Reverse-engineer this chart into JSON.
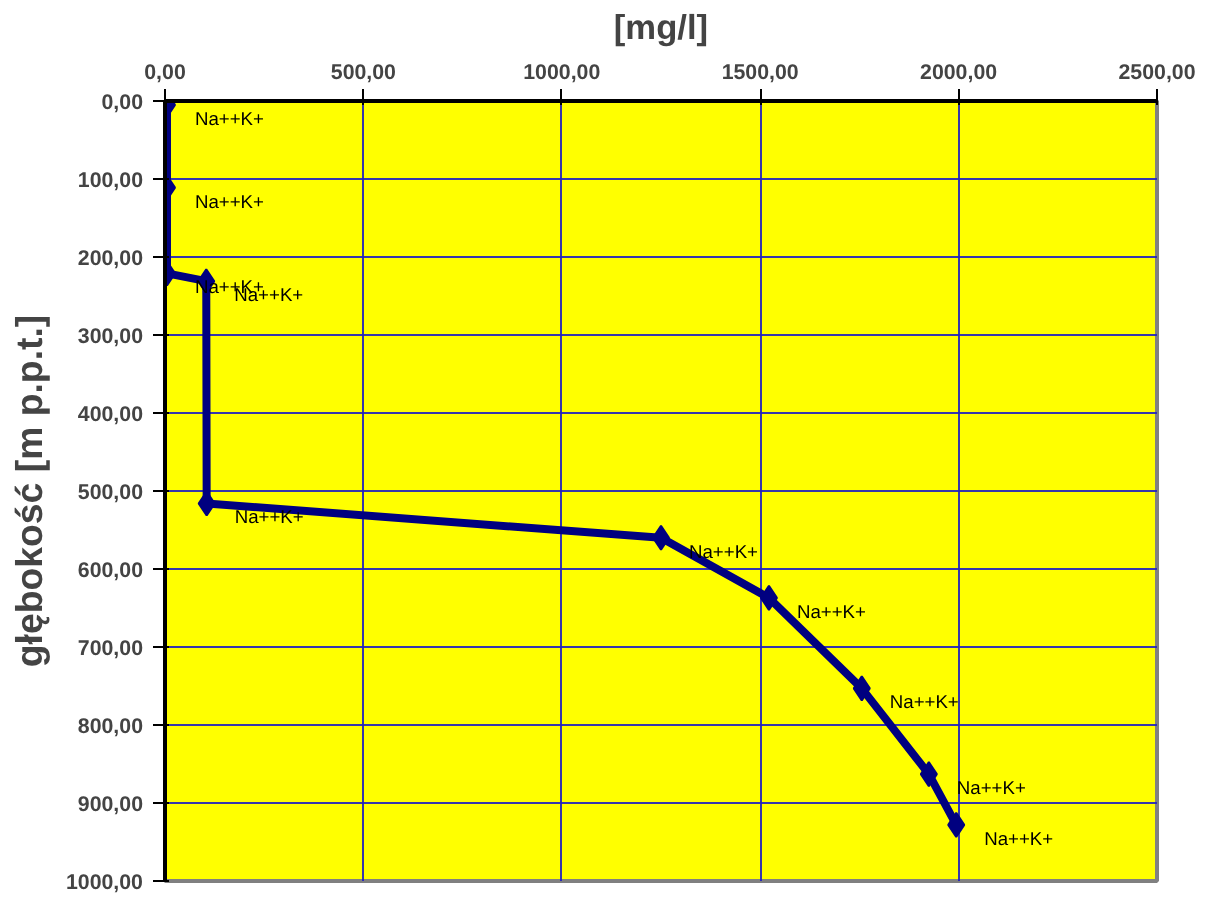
{
  "chart_data": {
    "type": "line",
    "xlabel": "[mg/l]",
    "ylabel": "głębokość [m p.p.t.]",
    "x": [
      5,
      5,
      5,
      104,
      105,
      1250,
      1522,
      1756,
      1925,
      1994
    ],
    "series": [
      {
        "color": "#000080",
        "values": [
          5,
          111,
          221,
          231,
          516,
          560,
          637,
          753,
          863,
          928
        ]
      }
    ],
    "xlim": [
      0,
      2500
    ],
    "ylim": [
      1000,
      0
    ],
    "xticks": [
      {
        "value": 0,
        "label": "0,00"
      },
      {
        "value": 500,
        "label": "500,00"
      },
      {
        "value": 1000,
        "label": "1000,00"
      },
      {
        "value": 1500,
        "label": "1500,00"
      },
      {
        "value": 2000,
        "label": "2000,00"
      },
      {
        "value": 2500,
        "label": "2500,00"
      }
    ],
    "yticks": [
      {
        "value": 0,
        "label": "0,00"
      },
      {
        "value": 100,
        "label": "100,00"
      },
      {
        "value": 200,
        "label": "200,00"
      },
      {
        "value": 300,
        "label": "300,00"
      },
      {
        "value": 400,
        "label": "400,00"
      },
      {
        "value": 500,
        "label": "500,00"
      },
      {
        "value": 600,
        "label": "600,00"
      },
      {
        "value": 700,
        "label": "700,00"
      },
      {
        "value": 800,
        "label": "800,00"
      },
      {
        "value": 900,
        "label": "900,00"
      },
      {
        "value": 1000,
        "label": "1000,00"
      }
    ],
    "annotations": [
      {
        "text": "Na++K+",
        "x": 5,
        "y": 5
      },
      {
        "text": "Na++K+",
        "x": 5,
        "y": 111
      },
      {
        "text": "Na++K+",
        "x": 5,
        "y": 221
      },
      {
        "text": "Na++K+",
        "x": 104,
        "y": 231
      },
      {
        "text": "Na++K+",
        "x": 105,
        "y": 516
      },
      {
        "text": "Na++K+",
        "x": 1250,
        "y": 560
      },
      {
        "text": "Na++K+",
        "x": 1522,
        "y": 637
      },
      {
        "text": "Na++K+",
        "x": 1756,
        "y": 753
      },
      {
        "text": "Na++K+",
        "x": 1925,
        "y": 863
      },
      {
        "text": "Na++K+",
        "x": 1994,
        "y": 928
      }
    ],
    "grid": true,
    "marker": "diamond",
    "line_style": "solid"
  }
}
